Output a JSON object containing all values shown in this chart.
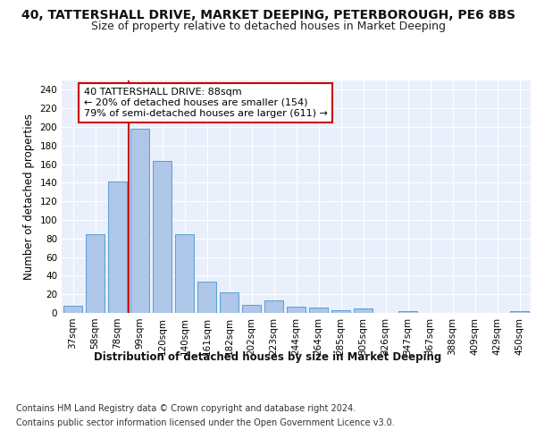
{
  "title": "40, TATTERSHALL DRIVE, MARKET DEEPING, PETERBOROUGH, PE6 8BS",
  "subtitle": "Size of property relative to detached houses in Market Deeping",
  "xlabel": "Distribution of detached houses by size in Market Deeping",
  "ylabel": "Number of detached properties",
  "categories": [
    "37sqm",
    "58sqm",
    "78sqm",
    "99sqm",
    "120sqm",
    "140sqm",
    "161sqm",
    "182sqm",
    "202sqm",
    "223sqm",
    "244sqm",
    "264sqm",
    "285sqm",
    "305sqm",
    "326sqm",
    "347sqm",
    "367sqm",
    "388sqm",
    "409sqm",
    "429sqm",
    "450sqm"
  ],
  "values": [
    8,
    85,
    141,
    198,
    163,
    85,
    34,
    22,
    9,
    13,
    7,
    6,
    3,
    5,
    0,
    2,
    0,
    0,
    0,
    0,
    2
  ],
  "bar_color": "#aec6e8",
  "bar_edge_color": "#5a9fd4",
  "vline_x_index": 2.5,
  "vline_color": "#cc0000",
  "annotation_text": "40 TATTERSHALL DRIVE: 88sqm\n← 20% of detached houses are smaller (154)\n79% of semi-detached houses are larger (611) →",
  "annotation_box_color": "#ffffff",
  "annotation_box_edge_color": "#cc0000",
  "ylim": [
    0,
    250
  ],
  "yticks": [
    0,
    20,
    40,
    60,
    80,
    100,
    120,
    140,
    160,
    180,
    200,
    220,
    240
  ],
  "footer_line1": "Contains HM Land Registry data © Crown copyright and database right 2024.",
  "footer_line2": "Contains public sector information licensed under the Open Government Licence v3.0.",
  "bg_color": "#eaf0fb",
  "title_fontsize": 10,
  "subtitle_fontsize": 9,
  "axis_label_fontsize": 8.5,
  "tick_fontsize": 7.5,
  "footer_fontsize": 7,
  "annotation_fontsize": 8
}
